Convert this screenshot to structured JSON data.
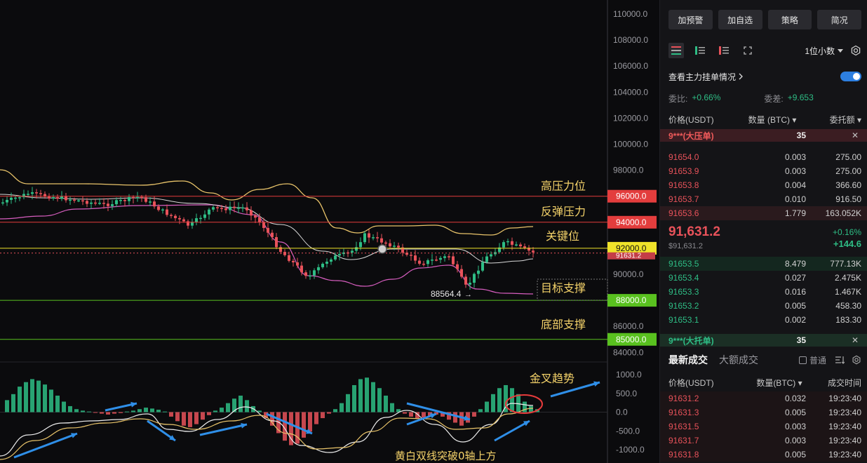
{
  "chart": {
    "price_axis": [
      "110000.0",
      "108000.0",
      "106000.0",
      "104000.0",
      "102000.0",
      "100000.0",
      "98000.0",
      "96000.0",
      "94000.0",
      "92000.0",
      "90000.0",
      "88000.0",
      "86000.0",
      "84000.0"
    ],
    "macd_axis": [
      "1000.0",
      "500.0",
      "0.0",
      "-500.0",
      "-1000.0"
    ],
    "levels": [
      {
        "label": "高压力位",
        "tag": "96000.0",
        "price": 96000,
        "color": "#e33d3d"
      },
      {
        "label": "反弹压力",
        "tag": "94000.0",
        "price": 94000,
        "color": "#e33d3d"
      },
      {
        "label": "关键位",
        "tag": "92000.0",
        "price": 92000,
        "color": "#f0e32a"
      },
      {
        "label": "目标支撑",
        "tag": "88000.0",
        "price": 88000,
        "color": "#59c11f"
      },
      {
        "label": "底部支撑",
        "tag": "85000.0",
        "price": 85000,
        "color": "#59c11f"
      }
    ],
    "current_tag": "91631.2",
    "low_label": "88564.4",
    "annotations": {
      "golden_cross": "金叉趋势",
      "macd_note": "黄白双线突破0轴上方"
    }
  },
  "sidebar": {
    "buttons": [
      "加预警",
      "加自选",
      "策略",
      "简况"
    ],
    "decimal": "1位小数",
    "main_orders_label": "查看主力挂单情况",
    "ratio_label": "委比:",
    "ratio_value": "+0.66%",
    "diff_label": "委差:",
    "diff_value": "+9.653",
    "headers": {
      "price": "价格(USDT)",
      "qty": "数量 (BTC)",
      "total": "委托额"
    },
    "ask_big": {
      "label": "9***(大压单)",
      "qty": "35"
    },
    "asks": [
      {
        "p": "91654.0",
        "q": "0.003",
        "t": "275.00"
      },
      {
        "p": "91653.9",
        "q": "0.003",
        "t": "275.00"
      },
      {
        "p": "91653.8",
        "q": "0.004",
        "t": "366.60"
      },
      {
        "p": "91653.7",
        "q": "0.010",
        "t": "916.50"
      },
      {
        "p": "91653.6",
        "q": "1.779",
        "t": "163.052K"
      }
    ],
    "last_price": "91,631.2",
    "mark_price": "$91,631.2",
    "change_pct": "+0.16%",
    "change_abs": "+144.6",
    "bids": [
      {
        "p": "91653.5",
        "q": "8.479",
        "t": "777.13K"
      },
      {
        "p": "91653.4",
        "q": "0.027",
        "t": "2.475K"
      },
      {
        "p": "91653.3",
        "q": "0.016",
        "t": "1.467K"
      },
      {
        "p": "91653.2",
        "q": "0.005",
        "t": "458.30"
      },
      {
        "p": "91653.1",
        "q": "0.002",
        "t": "183.30"
      }
    ],
    "bid_big": {
      "label": "9***(大托单)",
      "qty": "35"
    },
    "tabs": [
      "最新成交",
      "大额成交"
    ],
    "common_label": "普通",
    "trade_headers": {
      "price": "价格(USDT)",
      "qty": "数量(BTC)",
      "time": "成交时间"
    },
    "trades": [
      {
        "p": "91631.2",
        "q": "0.032",
        "t": "19:23:40"
      },
      {
        "p": "91631.3",
        "q": "0.005",
        "t": "19:23:40"
      },
      {
        "p": "91631.5",
        "q": "0.003",
        "t": "19:23:40"
      },
      {
        "p": "91631.7",
        "q": "0.003",
        "t": "19:23:40"
      },
      {
        "p": "91631.8",
        "q": "0.005",
        "t": "19:23:40"
      }
    ]
  }
}
